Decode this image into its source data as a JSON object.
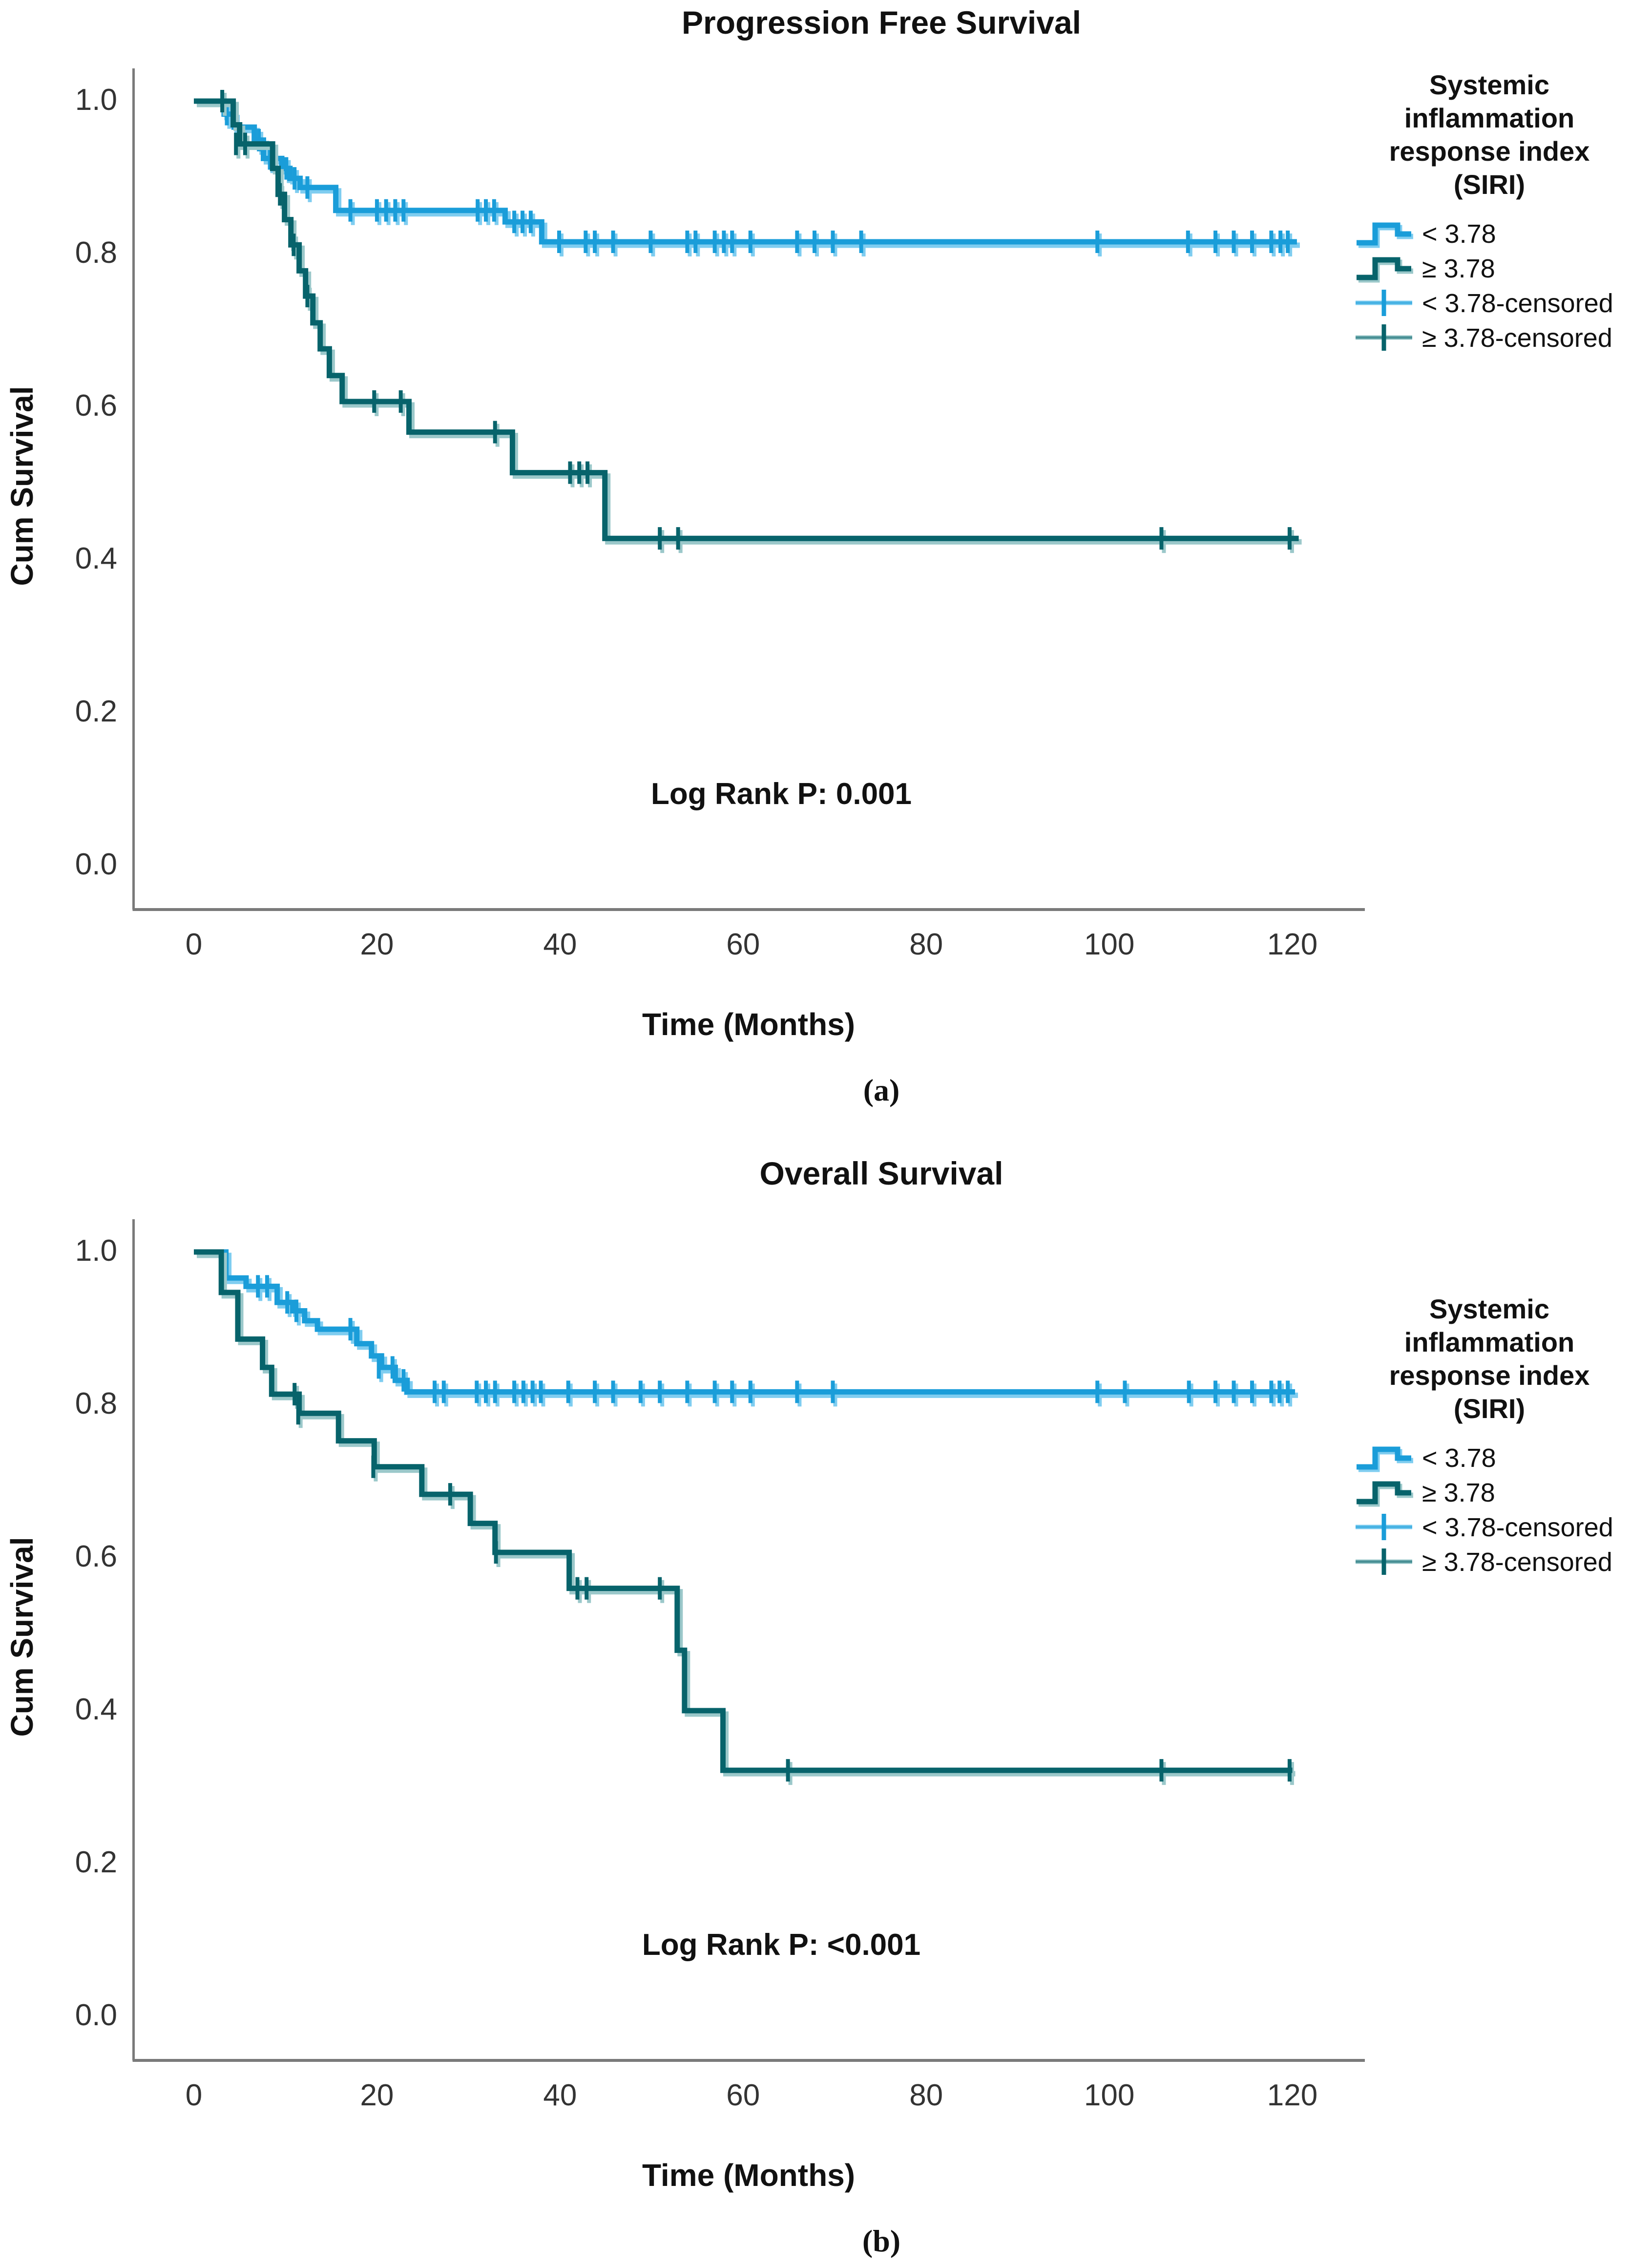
{
  "figure": {
    "background": "#ffffff",
    "axis_color": "#7a7a7a",
    "accent_blue": "#1a9dd9",
    "accent_teal": "#07636b"
  },
  "chart_data": [
    {
      "id": "a",
      "type": "line",
      "subtype": "kaplan-meier-step-survival",
      "title": "Progression Free Survival",
      "xlabel": "Time (Months)",
      "ylabel": "Cum Survival",
      "annotation": "Log Rank P: 0.001",
      "caption": "(a)",
      "xlim": [
        0,
        120
      ],
      "ylim": [
        0.0,
        1.0
      ],
      "x_ticks": [
        0,
        20,
        40,
        60,
        80,
        100,
        120
      ],
      "y_ticks": [
        {
          "v": 1.0,
          "label": "1.0"
        },
        {
          "v": 0.8,
          "label": "0.8"
        },
        {
          "v": 0.6,
          "label": "0.6"
        },
        {
          "v": 0.4,
          "label": "0.4"
        },
        {
          "v": 0.2,
          "label": "0.2"
        },
        {
          "v": 0.0,
          "label": "0.0"
        }
      ],
      "grid": false,
      "legend_position": "right",
      "legend_title_lines": [
        "Systemic",
        "inflammation",
        "response index",
        "(SIRI)"
      ],
      "legend_top": 140,
      "legend_items": [
        {
          "label": "< 3.78",
          "symbol": "step",
          "series": 0
        },
        {
          "label": "≥ 3.78",
          "symbol": "step",
          "series": 1
        },
        {
          "label": "< 3.78-censored",
          "symbol": "censored",
          "series": 0
        },
        {
          "label": "≥ 3.78-censored",
          "symbol": "censored",
          "series": 1
        }
      ],
      "series": [
        {
          "name": "< 3.78",
          "color": "#1a9dd9",
          "light": "#7fcdf0",
          "steps": [
            [
              0,
              1.0
            ],
            [
              3.3,
              0.983
            ],
            [
              4.4,
              0.966
            ],
            [
              6.6,
              0.949
            ],
            [
              7.6,
              0.925
            ],
            [
              9.6,
              0.912
            ],
            [
              10.5,
              0.899
            ],
            [
              11.6,
              0.887
            ],
            [
              15.5,
              0.857
            ],
            [
              34.0,
              0.842
            ],
            [
              38.0,
              0.816
            ],
            [
              120.5,
              0.816
            ]
          ],
          "censored": [
            [
              3.6,
              0.983
            ],
            [
              7.1,
              0.949
            ],
            [
              8.3,
              0.925
            ],
            [
              10.1,
              0.912
            ],
            [
              11.0,
              0.899
            ],
            [
              12.4,
              0.887
            ],
            [
              17.1,
              0.857
            ],
            [
              20.0,
              0.857
            ],
            [
              21.0,
              0.857
            ],
            [
              22.0,
              0.857
            ],
            [
              22.9,
              0.857
            ],
            [
              31.0,
              0.857
            ],
            [
              31.9,
              0.857
            ],
            [
              32.8,
              0.857
            ],
            [
              35.0,
              0.842
            ],
            [
              35.9,
              0.842
            ],
            [
              36.8,
              0.842
            ],
            [
              39.9,
              0.816
            ],
            [
              42.8,
              0.816
            ],
            [
              43.8,
              0.816
            ],
            [
              45.8,
              0.816
            ],
            [
              49.9,
              0.816
            ],
            [
              53.9,
              0.816
            ],
            [
              54.8,
              0.816
            ],
            [
              56.9,
              0.816
            ],
            [
              57.9,
              0.816
            ],
            [
              58.8,
              0.816
            ],
            [
              60.8,
              0.816
            ],
            [
              65.9,
              0.816
            ],
            [
              67.8,
              0.816
            ],
            [
              69.8,
              0.816
            ],
            [
              72.9,
              0.816
            ],
            [
              98.7,
              0.816
            ],
            [
              108.6,
              0.816
            ],
            [
              111.6,
              0.816
            ],
            [
              113.6,
              0.816
            ],
            [
              115.6,
              0.816
            ],
            [
              117.7,
              0.816
            ],
            [
              118.7,
              0.816
            ],
            [
              119.5,
              0.816
            ]
          ]
        },
        {
          "name": "≥ 3.78",
          "color": "#07636b",
          "light": "#9bc8ca",
          "steps": [
            [
              0,
              1.0
            ],
            [
              4.3,
              0.969
            ],
            [
              5.0,
              0.944
            ],
            [
              8.6,
              0.912
            ],
            [
              9.2,
              0.878
            ],
            [
              9.9,
              0.845
            ],
            [
              10.6,
              0.812
            ],
            [
              11.5,
              0.778
            ],
            [
              12.2,
              0.745
            ],
            [
              13.0,
              0.71
            ],
            [
              13.8,
              0.676
            ],
            [
              14.8,
              0.641
            ],
            [
              16.2,
              0.607
            ],
            [
              23.5,
              0.567
            ],
            [
              34.8,
              0.514
            ],
            [
              44.9,
              0.428
            ],
            [
              120.7,
              0.428
            ]
          ],
          "censored": [
            [
              3.1,
              1.0
            ],
            [
              4.6,
              0.944
            ],
            [
              5.6,
              0.944
            ],
            [
              9.4,
              0.878
            ],
            [
              10.9,
              0.812
            ],
            [
              12.4,
              0.745
            ],
            [
              19.7,
              0.607
            ],
            [
              22.6,
              0.607
            ],
            [
              32.9,
              0.567
            ],
            [
              41.1,
              0.514
            ],
            [
              42.1,
              0.514
            ],
            [
              43.0,
              0.514
            ],
            [
              50.9,
              0.428
            ],
            [
              52.9,
              0.428
            ],
            [
              105.7,
              0.428
            ],
            [
              119.7,
              0.428
            ]
          ]
        }
      ]
    },
    {
      "id": "b",
      "type": "line",
      "subtype": "kaplan-meier-step-survival",
      "title": "Overall Survival",
      "xlabel": "Time (Months)",
      "ylabel": "Cum Survival",
      "annotation": "Log Rank P: <0.001",
      "caption": "(b)",
      "xlim": [
        0,
        120
      ],
      "ylim": [
        0.0,
        1.0
      ],
      "x_ticks": [
        0,
        20,
        40,
        60,
        80,
        100,
        120
      ],
      "y_ticks": [
        {
          "v": 1.0,
          "label": "1.0"
        },
        {
          "v": 0.8,
          "label": "0.8"
        },
        {
          "v": 0.6,
          "label": "0.6"
        },
        {
          "v": 0.4,
          "label": "0.4"
        },
        {
          "v": 0.2,
          "label": "0.2"
        },
        {
          "v": 0.0,
          "label": "0.0"
        }
      ],
      "grid": false,
      "legend_position": "right",
      "legend_title_lines": [
        "Systemic",
        "inflammation",
        "response index",
        "(SIRI)"
      ],
      "legend_top": 290,
      "legend_items": [
        {
          "label": "< 3.78",
          "symbol": "step",
          "series": 0
        },
        {
          "label": "≥ 3.78",
          "symbol": "step",
          "series": 1
        },
        {
          "label": "< 3.78-censored",
          "symbol": "censored",
          "series": 0
        },
        {
          "label": "≥ 3.78-censored",
          "symbol": "censored",
          "series": 1
        }
      ],
      "series": [
        {
          "name": "< 3.78",
          "color": "#1a9dd9",
          "light": "#7fcdf0",
          "steps": [
            [
              0,
              1.0
            ],
            [
              3.5,
              0.966
            ],
            [
              5.7,
              0.955
            ],
            [
              9.1,
              0.934
            ],
            [
              10.8,
              0.923
            ],
            [
              12.1,
              0.91
            ],
            [
              13.5,
              0.899
            ],
            [
              17.8,
              0.88
            ],
            [
              19.4,
              0.864
            ],
            [
              20.5,
              0.849
            ],
            [
              22.0,
              0.832
            ],
            [
              23.3,
              0.817
            ],
            [
              120.3,
              0.817
            ]
          ],
          "censored": [
            [
              7.0,
              0.955
            ],
            [
              8.0,
              0.955
            ],
            [
              10.2,
              0.934
            ],
            [
              11.2,
              0.923
            ],
            [
              17.1,
              0.899
            ],
            [
              20.2,
              0.849
            ],
            [
              21.7,
              0.849
            ],
            [
              22.9,
              0.832
            ],
            [
              26.3,
              0.817
            ],
            [
              27.3,
              0.817
            ],
            [
              30.9,
              0.817
            ],
            [
              31.9,
              0.817
            ],
            [
              32.9,
              0.817
            ],
            [
              35.0,
              0.817
            ],
            [
              36.0,
              0.817
            ],
            [
              37.0,
              0.817
            ],
            [
              37.9,
              0.817
            ],
            [
              40.9,
              0.817
            ],
            [
              43.8,
              0.817
            ],
            [
              45.8,
              0.817
            ],
            [
              48.8,
              0.817
            ],
            [
              50.9,
              0.817
            ],
            [
              53.9,
              0.817
            ],
            [
              56.9,
              0.817
            ],
            [
              58.8,
              0.817
            ],
            [
              60.8,
              0.817
            ],
            [
              65.9,
              0.817
            ],
            [
              69.8,
              0.817
            ],
            [
              98.7,
              0.817
            ],
            [
              101.7,
              0.817
            ],
            [
              108.7,
              0.817
            ],
            [
              111.6,
              0.817
            ],
            [
              113.6,
              0.817
            ],
            [
              115.6,
              0.817
            ],
            [
              117.7,
              0.817
            ],
            [
              118.6,
              0.817
            ],
            [
              119.5,
              0.817
            ]
          ]
        },
        {
          "name": "≥ 3.78",
          "color": "#07636b",
          "light": "#9bc8ca",
          "steps": [
            [
              0,
              1.0
            ],
            [
              3.0,
              0.947
            ],
            [
              4.8,
              0.886
            ],
            [
              7.5,
              0.849
            ],
            [
              8.5,
              0.814
            ],
            [
              11.5,
              0.789
            ],
            [
              15.8,
              0.753
            ],
            [
              19.7,
              0.719
            ],
            [
              24.9,
              0.683
            ],
            [
              30.2,
              0.645
            ],
            [
              32.9,
              0.607
            ],
            [
              41.0,
              0.56
            ],
            [
              52.8,
              0.479
            ],
            [
              53.6,
              0.4
            ],
            [
              57.8,
              0.322
            ],
            [
              120.0,
              0.322
            ]
          ],
          "censored": [
            [
              11.0,
              0.814
            ],
            [
              11.4,
              0.789
            ],
            [
              19.6,
              0.719
            ],
            [
              28.0,
              0.683
            ],
            [
              33.0,
              0.607
            ],
            [
              41.9,
              0.56
            ],
            [
              42.9,
              0.56
            ],
            [
              50.9,
              0.56
            ],
            [
              64.9,
              0.322
            ],
            [
              105.7,
              0.322
            ],
            [
              119.7,
              0.322
            ]
          ]
        }
      ]
    }
  ]
}
